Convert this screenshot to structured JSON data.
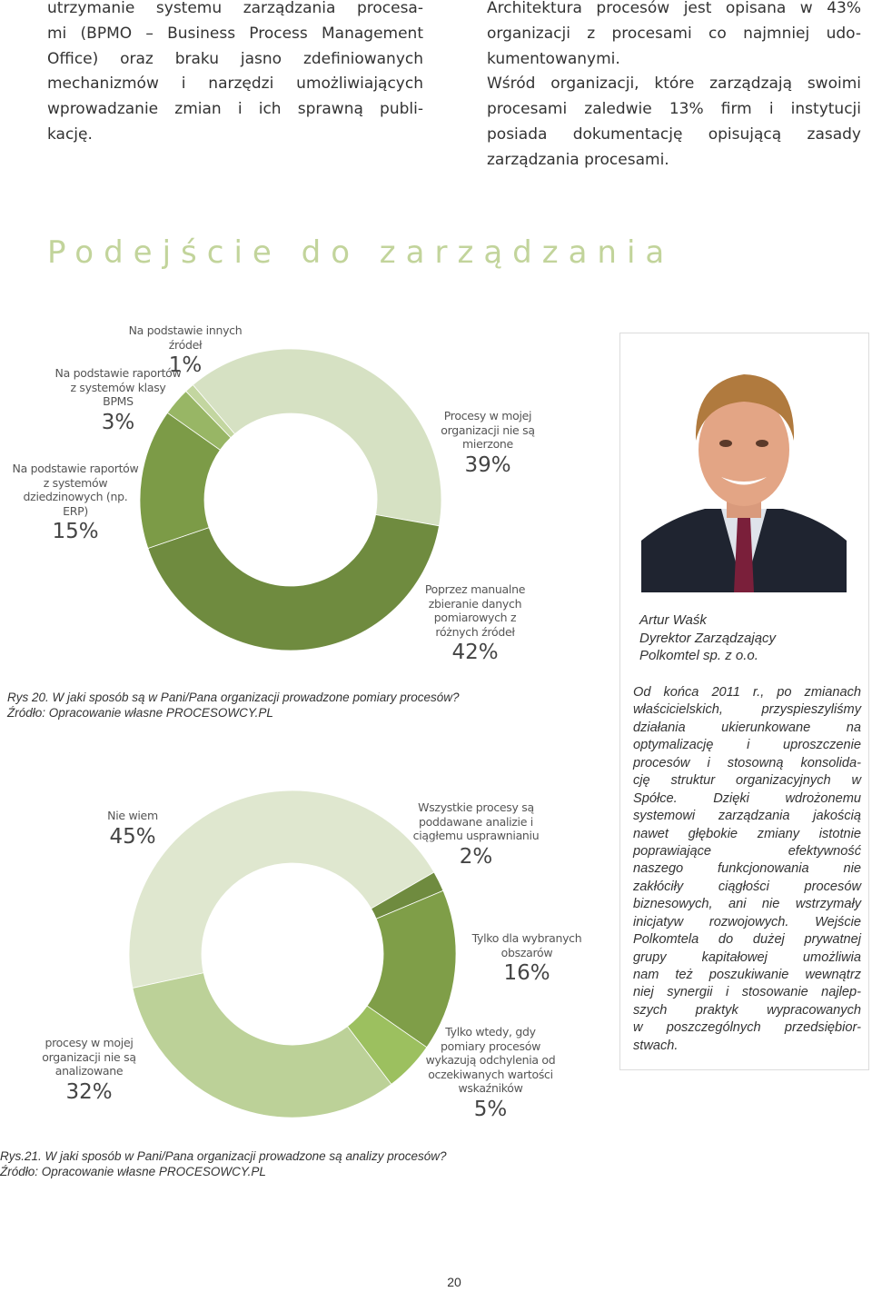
{
  "text": {
    "left_column": [
      [
        "utrzymanie systemu zarządzania procesa-",
        "mi (BPMO – Business Process Management",
        "Office) oraz braku jasno zdefiniowanych",
        "mechanizmów i narzędzi umożliwiających",
        "wprowadzanie zmian i ich sprawną publi-",
        "kację."
      ]
    ],
    "right_column": [
      [
        "Architektura procesów jest opisana w 43%",
        "organizacji z procesami co najmniej udo-",
        "kumentowanymi."
      ],
      [
        "Wśród organizacji, które zarządzają swoimi",
        "procesami zaledwie 13% firm i instytucji",
        "posiada dokumentację opisującą zasady",
        "zarządzania procesami."
      ]
    ],
    "heading": "Podejście do zarządzania"
  },
  "chart_data": [
    {
      "type": "donut",
      "categories": [
        "Procesy w mojej organizacji nie są mierzone",
        "Poprzez manualne zbieranie danych pomiarowych z różnych źródeł",
        "Na podstawie raportów z systemów dziedzinowych (np. ERP)",
        "Na podstawie raportów z systemów klasy BPMS",
        "Na podstawie innych źródeł"
      ],
      "values": [
        39,
        42,
        15,
        3,
        1
      ],
      "value_labels": [
        "39%",
        "42%",
        "15%",
        "3%",
        "1%"
      ],
      "colors": [
        "#d6e1c3",
        "#6f8b3f",
        "#7c9b47",
        "#98b665",
        "#c3d6a0"
      ],
      "caption": "Rys 20. W jaki sposób są w Pani/Pana organizacji prowadzone pomiary procesów?",
      "source": "Źródło: Opracowanie własne PROCESOWCY.PL"
    },
    {
      "type": "donut",
      "categories": [
        "Nie wiem",
        "Wszystkie procesy są poddawane analizie i ciągłemu usprawnianiu",
        "Tylko dla wybranych obszarów",
        "Tylko wtedy, gdy pomiary procesów wykazują odchylenia od oczekiwanych wartości wskaźników",
        "procesy w mojej organizacji nie są analizowane"
      ],
      "values": [
        45,
        2,
        16,
        5,
        32
      ],
      "value_labels": [
        "45%",
        "2%",
        "16%",
        "5%",
        "32%"
      ],
      "colors": [
        "#dfe7cf",
        "#6f8b3f",
        "#7f9e48",
        "#9cc05f",
        "#bcd198"
      ],
      "caption": "Rys.21. W jaki sposób w Pani/Pana organizacji prowadzone są analizy procesów?",
      "source": "Źródło: Opracowanie własne PROCESOWCY.PL"
    }
  ],
  "sidebar": {
    "name": "Artur Waśk",
    "position": "Dyrektor Zarządzający",
    "company": "Polkomtel sp. z o.o.",
    "quote": [
      "Od końca 2011 r., po zmianach",
      "właścicielskich, przyspieszyliśmy",
      "działania ukierunkowane na",
      "optymalizację i uproszczenie",
      "procesów i stosowną konsolida-",
      "cję struktur organizacyjnych w",
      "Spółce. Dzięki wdrożonemu",
      "systemowi zarządzania jakością",
      "nawet głębokie zmiany istotnie",
      "poprawiające efektywność",
      "naszego funkcjonowania nie",
      "zakłóciły ciągłości procesów",
      "biznesowych, ani nie wstrzymały",
      "inicjatyw rozwojowych. Wejście",
      "Polkomtela do dużej prywatnej",
      "grupy kapitałowej umożliwia",
      "nam też poszukiwanie wewnątrz",
      "niej synergii i stosowanie najlep-",
      "szych praktyk wypracowanych",
      "w poszczególnych przedsiębior-",
      "stwach."
    ]
  },
  "page_number": "20"
}
